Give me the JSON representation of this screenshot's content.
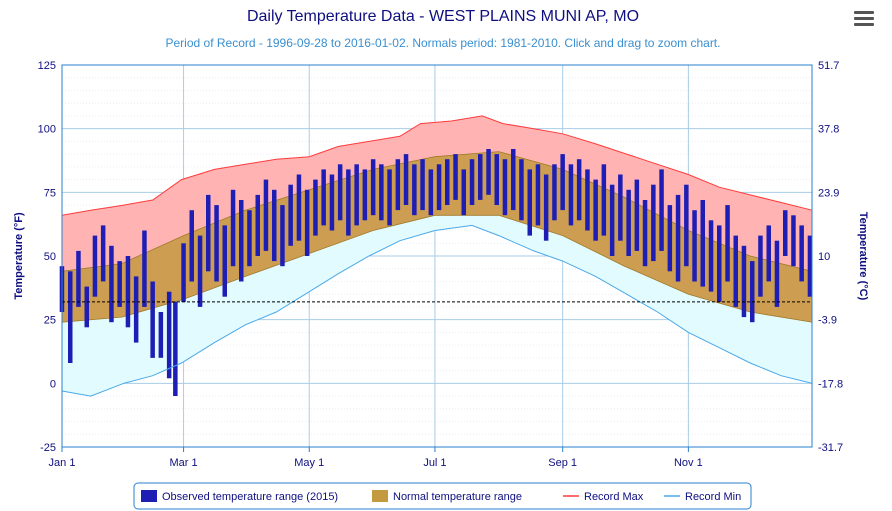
{
  "chart_data": {
    "type": "area",
    "title": "Daily Temperature Data - WEST PLAINS MUNI AP, MO",
    "subtitle": "Period of Record - 1996-09-28 to 2016-01-02. Normals period: 1981-2010. Click and drag to zoom chart.",
    "ylabel_left": "Temperature (°F)",
    "ylabel_right": "Temperature (°C)",
    "ylim_f": [
      -25,
      125
    ],
    "yticks_f": [
      125,
      100,
      75,
      50,
      25,
      0,
      -25
    ],
    "yticks_c": [
      "51.7",
      "37.8",
      "23.9",
      "10",
      "-3.9",
      "-17.8",
      "-31.7"
    ],
    "xlim_day": [
      1,
      365
    ],
    "xticks": [
      {
        "day": 1,
        "label": "Jan 1"
      },
      {
        "day": 60,
        "label": "Mar 1"
      },
      {
        "day": 121,
        "label": "May 1"
      },
      {
        "day": 182,
        "label": "Jul 1"
      },
      {
        "day": 244,
        "label": "Sep 1"
      },
      {
        "day": 305,
        "label": "Nov 1"
      }
    ],
    "freezing_line_f": 32,
    "grid": true,
    "legend_position": "bottom-center",
    "series": [
      {
        "name": "Record Max",
        "kind": "line-upper",
        "color": "#ff3b3b",
        "fill": "#ffb3b3",
        "points": [
          [
            1,
            66
          ],
          [
            15,
            68
          ],
          [
            31,
            70
          ],
          [
            45,
            72
          ],
          [
            59,
            80
          ],
          [
            75,
            84
          ],
          [
            90,
            86
          ],
          [
            105,
            88
          ],
          [
            121,
            89
          ],
          [
            135,
            93
          ],
          [
            150,
            95
          ],
          [
            165,
            97
          ],
          [
            175,
            102
          ],
          [
            190,
            103
          ],
          [
            205,
            105
          ],
          [
            215,
            102
          ],
          [
            230,
            100
          ],
          [
            244,
            98
          ],
          [
            260,
            94
          ],
          [
            275,
            90
          ],
          [
            290,
            86
          ],
          [
            305,
            82
          ],
          [
            320,
            77
          ],
          [
            335,
            74
          ],
          [
            350,
            71
          ],
          [
            365,
            68
          ]
        ]
      },
      {
        "name": "Normal temperature range",
        "kind": "band",
        "color": "#c49a40",
        "high": [
          [
            1,
            44
          ],
          [
            30,
            47
          ],
          [
            60,
            58
          ],
          [
            90,
            68
          ],
          [
            121,
            76
          ],
          [
            152,
            84
          ],
          [
            182,
            89
          ],
          [
            213,
            91
          ],
          [
            244,
            84
          ],
          [
            274,
            73
          ],
          [
            305,
            60
          ],
          [
            335,
            50
          ],
          [
            365,
            44
          ]
        ],
        "low": [
          [
            1,
            24
          ],
          [
            30,
            26
          ],
          [
            60,
            33
          ],
          [
            90,
            42
          ],
          [
            121,
            51
          ],
          [
            152,
            60
          ],
          [
            182,
            66
          ],
          [
            213,
            66
          ],
          [
            244,
            58
          ],
          [
            274,
            46
          ],
          [
            305,
            35
          ],
          [
            335,
            28
          ],
          [
            365,
            24
          ]
        ]
      },
      {
        "name": "Record Min",
        "kind": "line-lower",
        "color": "#4aa8e8",
        "fill": "#e2fbff",
        "points": [
          [
            1,
            -3
          ],
          [
            15,
            -5
          ],
          [
            31,
            0
          ],
          [
            45,
            3
          ],
          [
            59,
            8
          ],
          [
            75,
            16
          ],
          [
            90,
            23
          ],
          [
            105,
            28
          ],
          [
            121,
            36
          ],
          [
            135,
            43
          ],
          [
            150,
            50
          ],
          [
            165,
            56
          ],
          [
            182,
            60
          ],
          [
            200,
            62
          ],
          [
            213,
            58
          ],
          [
            230,
            52
          ],
          [
            244,
            48
          ],
          [
            260,
            42
          ],
          [
            275,
            35
          ],
          [
            290,
            28
          ],
          [
            305,
            20
          ],
          [
            320,
            14
          ],
          [
            335,
            8
          ],
          [
            350,
            3
          ],
          [
            365,
            0
          ]
        ]
      },
      {
        "name": "Observed temperature range (2015)",
        "kind": "bars",
        "color": "#1e1eb4",
        "ranges": [
          [
            1,
            46,
            28
          ],
          [
            5,
            44,
            8
          ],
          [
            9,
            52,
            30
          ],
          [
            13,
            38,
            22
          ],
          [
            17,
            58,
            34
          ],
          [
            21,
            62,
            40
          ],
          [
            25,
            54,
            24
          ],
          [
            29,
            48,
            30
          ],
          [
            33,
            50,
            22
          ],
          [
            37,
            42,
            16
          ],
          [
            41,
            60,
            30
          ],
          [
            45,
            40,
            10
          ],
          [
            49,
            28,
            10
          ],
          [
            53,
            36,
            2
          ],
          [
            56,
            32,
            -5
          ],
          [
            60,
            55,
            32
          ],
          [
            64,
            68,
            40
          ],
          [
            68,
            58,
            30
          ],
          [
            72,
            74,
            44
          ],
          [
            76,
            70,
            40
          ],
          [
            80,
            62,
            34
          ],
          [
            84,
            76,
            46
          ],
          [
            88,
            72,
            40
          ],
          [
            92,
            68,
            46
          ],
          [
            96,
            74,
            50
          ],
          [
            100,
            80,
            52
          ],
          [
            104,
            76,
            48
          ],
          [
            108,
            70,
            46
          ],
          [
            112,
            78,
            54
          ],
          [
            116,
            82,
            56
          ],
          [
            120,
            76,
            50
          ],
          [
            124,
            80,
            58
          ],
          [
            128,
            84,
            62
          ],
          [
            132,
            82,
            60
          ],
          [
            136,
            86,
            64
          ],
          [
            140,
            84,
            58
          ],
          [
            144,
            86,
            62
          ],
          [
            148,
            84,
            64
          ],
          [
            152,
            88,
            66
          ],
          [
            156,
            86,
            64
          ],
          [
            160,
            84,
            62
          ],
          [
            164,
            88,
            68
          ],
          [
            168,
            90,
            70
          ],
          [
            172,
            86,
            66
          ],
          [
            176,
            88,
            68
          ],
          [
            180,
            84,
            66
          ],
          [
            184,
            86,
            68
          ],
          [
            188,
            88,
            70
          ],
          [
            192,
            90,
            72
          ],
          [
            196,
            84,
            66
          ],
          [
            200,
            88,
            70
          ],
          [
            204,
            90,
            72
          ],
          [
            208,
            92,
            74
          ],
          [
            212,
            90,
            70
          ],
          [
            216,
            88,
            66
          ],
          [
            220,
            92,
            68
          ],
          [
            224,
            88,
            64
          ],
          [
            228,
            84,
            58
          ],
          [
            232,
            86,
            62
          ],
          [
            236,
            82,
            56
          ],
          [
            240,
            86,
            64
          ],
          [
            244,
            90,
            68
          ],
          [
            248,
            86,
            62
          ],
          [
            252,
            88,
            64
          ],
          [
            256,
            84,
            60
          ],
          [
            260,
            80,
            56
          ],
          [
            264,
            86,
            58
          ],
          [
            268,
            78,
            50
          ],
          [
            272,
            82,
            56
          ],
          [
            276,
            76,
            50
          ],
          [
            280,
            80,
            52
          ],
          [
            284,
            72,
            46
          ],
          [
            288,
            78,
            48
          ],
          [
            292,
            84,
            52
          ],
          [
            296,
            70,
            44
          ],
          [
            300,
            74,
            40
          ],
          [
            304,
            78,
            46
          ],
          [
            308,
            68,
            40
          ],
          [
            312,
            72,
            38
          ],
          [
            316,
            64,
            36
          ],
          [
            320,
            62,
            32
          ],
          [
            324,
            70,
            40
          ],
          [
            328,
            58,
            30
          ],
          [
            332,
            54,
            26
          ],
          [
            336,
            48,
            24
          ],
          [
            340,
            58,
            34
          ],
          [
            344,
            62,
            40
          ],
          [
            348,
            56,
            30
          ],
          [
            352,
            68,
            50
          ],
          [
            356,
            66,
            46
          ],
          [
            360,
            62,
            40
          ],
          [
            364,
            58,
            34
          ]
        ]
      }
    ],
    "legend": [
      {
        "name": "Observed temperature range (2015)",
        "swatch": "box",
        "color": "#1e1eb4"
      },
      {
        "name": "Normal temperature range",
        "swatch": "box",
        "color": "#c49a40"
      },
      {
        "name": "Record Max",
        "swatch": "line",
        "color": "#ff3b3b"
      },
      {
        "name": "Record Min",
        "swatch": "line",
        "color": "#4aa8e8"
      }
    ]
  }
}
